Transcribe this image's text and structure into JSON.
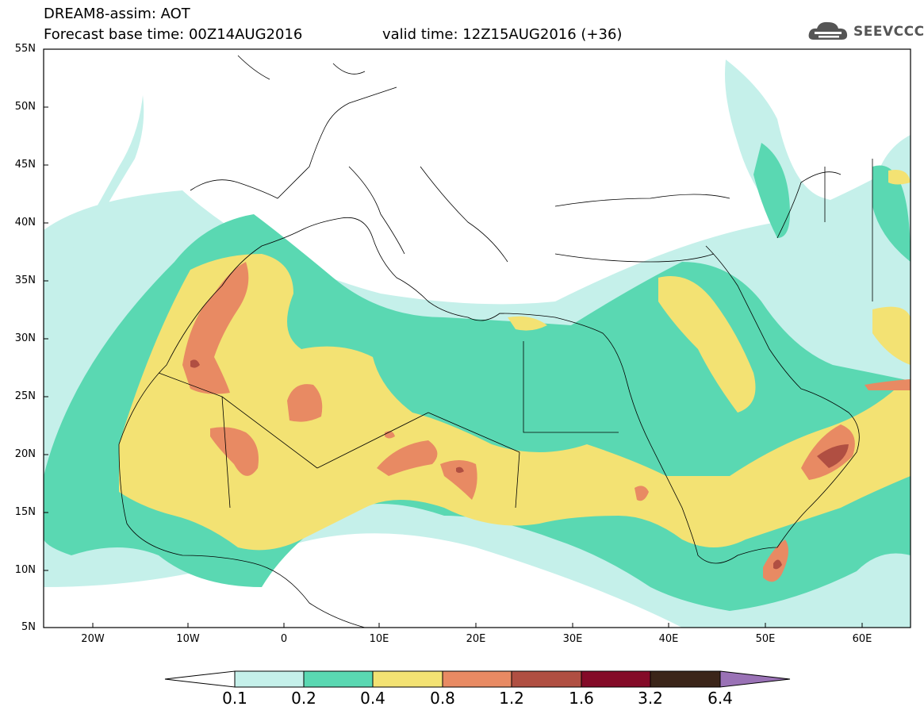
{
  "header": {
    "title": "DREAM8-assim: AOT",
    "base_time": "Forecast base time: 00Z14AUG2016",
    "valid_time": "valid time: 12Z15AUG2016 (+36)",
    "logo_text": "SEEVCCC"
  },
  "map": {
    "lat_labels": [
      "55N",
      "50N",
      "45N",
      "40N",
      "35N",
      "30N",
      "25N",
      "20N",
      "15N",
      "10N",
      "5N"
    ],
    "lon_labels": [
      "20W",
      "10W",
      "0",
      "10E",
      "20E",
      "30E",
      "40E",
      "50E",
      "60E"
    ]
  },
  "colorbar": {
    "labels": [
      "0.1",
      "0.2",
      "0.4",
      "0.8",
      "1.2",
      "1.6",
      "3.2",
      "6.4"
    ],
    "colors": [
      "#c5f0ea",
      "#5ad8b2",
      "#f3e273",
      "#e88a63",
      "#b04f42",
      "#840b28",
      "#3b2519",
      "#9a72b6"
    ]
  }
}
